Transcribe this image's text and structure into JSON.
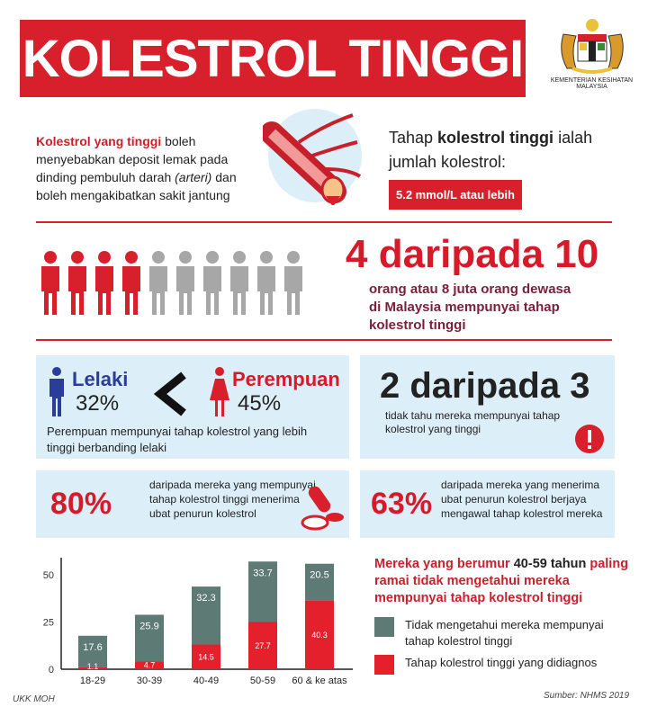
{
  "title": "KOLESTROL TINGGI",
  "logo": {
    "caption_line1": "KEMENTERIAN KESIHATAN",
    "caption_line2": "MALAYSIA",
    "icon": "malaysia-coat-of-arms"
  },
  "intro": {
    "highlight": "Kolestrol yang tinggi",
    "text1": " boleh menyebabkan deposit lemak pada dinding pembuluh darah ",
    "italic": "(arteri)",
    "text2": " dan boleh mengakibatkan sakit jantung",
    "image": "artery-illustration"
  },
  "threshold": {
    "text1": "Tahap ",
    "bold": "kolestrol tinggi",
    "text2": " ialah jumlah kolestrol:",
    "value": "5.2 mmol/L atau lebih"
  },
  "prevalence": {
    "headline": "4 daripada 10",
    "text": "orang atau 8 juta orang dewasa di Malaysia mempunyai tahap kolestrol tinggi",
    "highlighted_people": 4,
    "total_people": 10
  },
  "gender": {
    "male_label": "Lelaki",
    "male_value": "32%",
    "female_label": "Perempuan",
    "female_value": "45%",
    "note": "Perempuan mempunyai tahap kolestrol yang lebih tinggi berbanding lelaki"
  },
  "unaware": {
    "headline": "2 daripada 3",
    "text": "tidak tahu mereka mempunyai tahap kolestrol yang tinggi"
  },
  "treated": {
    "value": "80%",
    "text": "daripada mereka yang mempunyai tahap kolestrol tinggi menerima ubat penurun kolestrol"
  },
  "controlled": {
    "value": "63%",
    "text": "daripada mereka yang menerima ubat penurun kolestrol berjaya mengawal tahap kolestrol mereka"
  },
  "chart_note": {
    "part1": "Mereka yang berumur ",
    "bold": "40-59 tahun",
    "part2": " paling ramai tidak mengetahui mereka mempunyai tahap kolestrol tinggi"
  },
  "colors": {
    "red": "#d8202c",
    "grey": "#5e7a74",
    "box": "#dceef8"
  },
  "chart_data": {
    "type": "bar",
    "stacked": true,
    "categories": [
      "18-29",
      "30-39",
      "40-49",
      "50-59",
      "60 & ke atas"
    ],
    "series": [
      {
        "name": "Tahap kolestrol tinggi yang didiagnos",
        "color": "#e4202c",
        "values": [
          1.1,
          4.7,
          14.5,
          27.7,
          40.3
        ]
      },
      {
        "name": "Tidak mengetahui mereka mempunyai tahap kolestrol tinggi",
        "color": "#5e7a74",
        "values": [
          17.6,
          25.9,
          32.3,
          33.7,
          20.5
        ]
      }
    ],
    "yticks": [
      "0",
      "25",
      "50"
    ],
    "legend": "right"
  },
  "footer": {
    "left": "UKK MOH",
    "right": "Sumber: NHMS 2019"
  }
}
